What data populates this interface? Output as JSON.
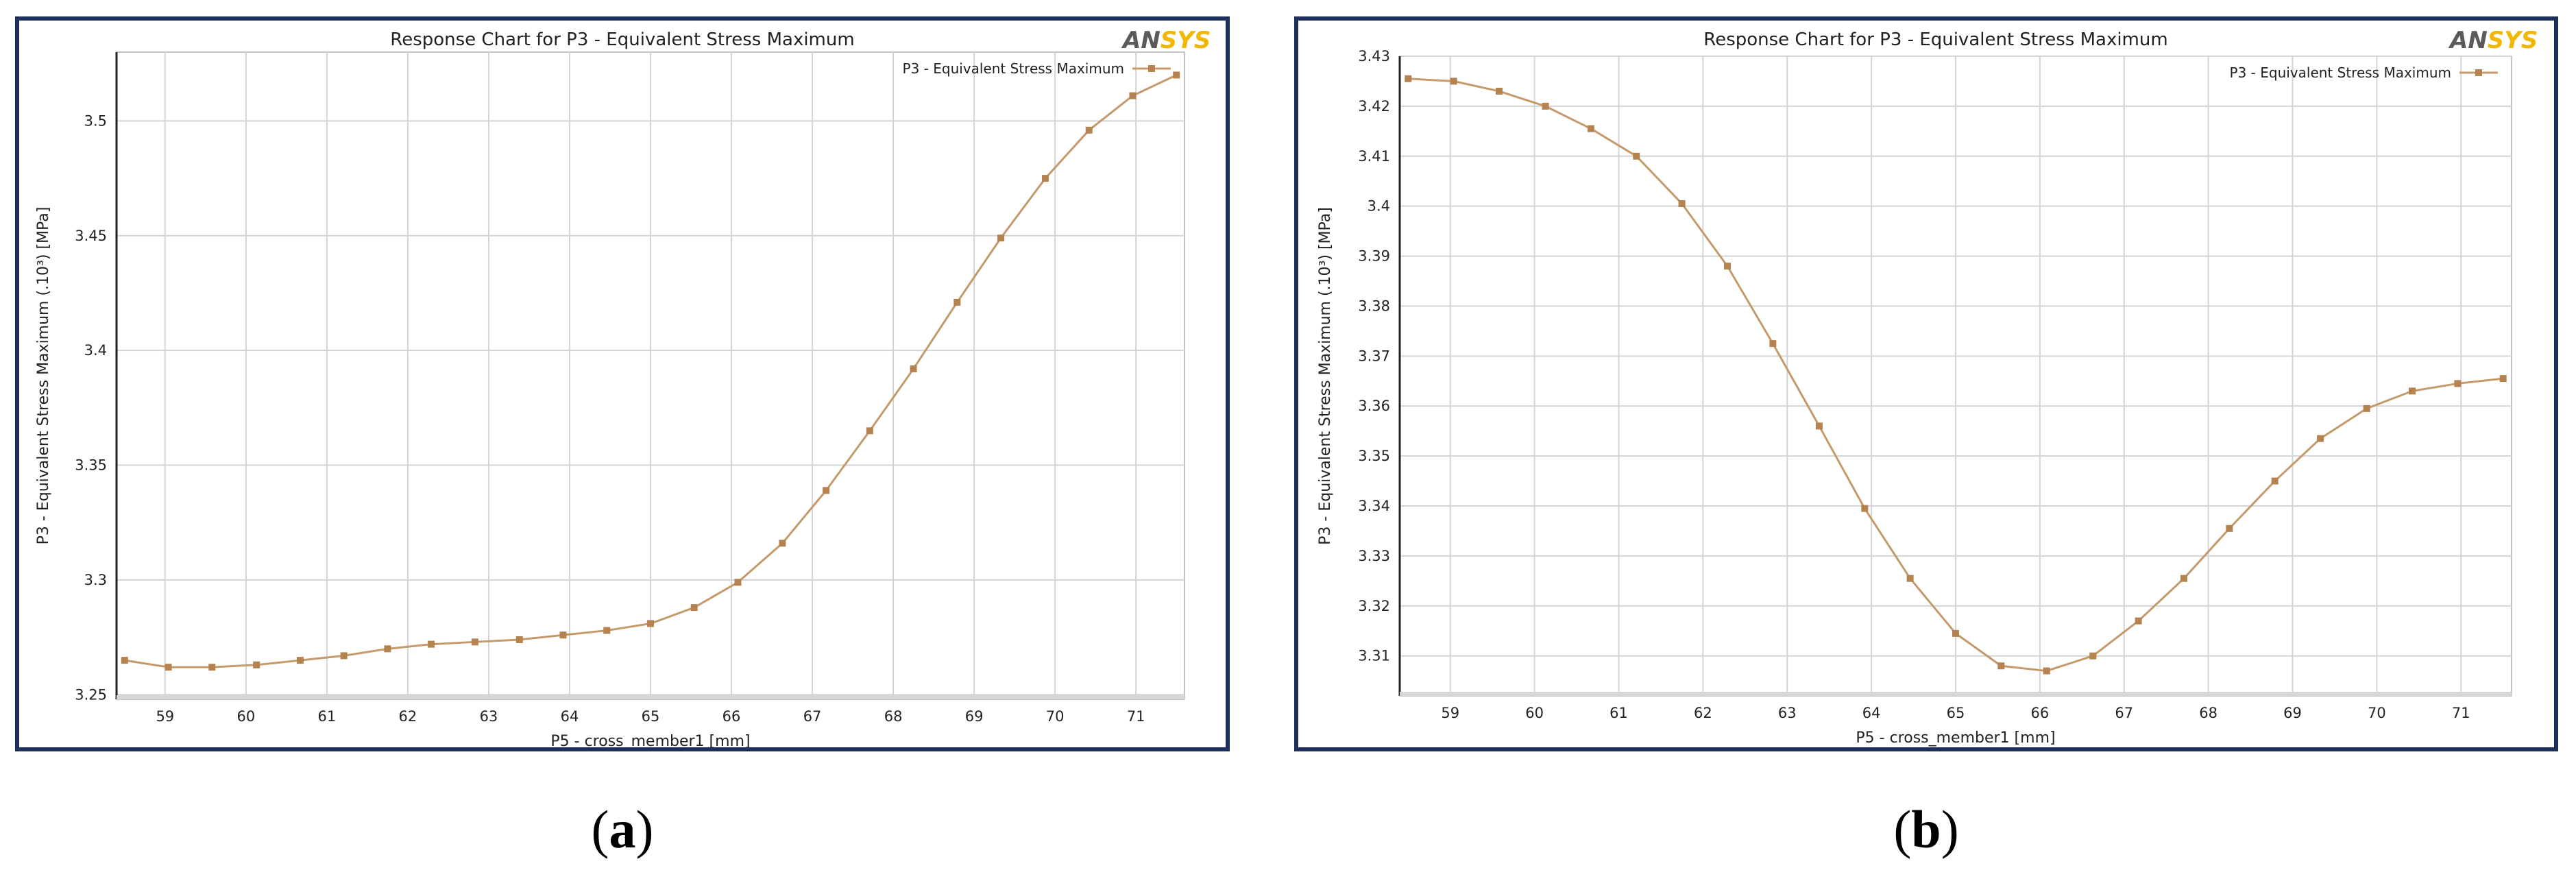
{
  "brand": {
    "logo_text_left": "AN",
    "logo_text_right": "SYS",
    "logo_color_left": "#5a5a5a",
    "logo_color_right": "#f2b705"
  },
  "colors": {
    "frame": "#1f2f5c",
    "series": "#c49a6c",
    "marker": "#b5834f",
    "grid": "#d4d4d4"
  },
  "panels": [
    {
      "sublabel_open": "(",
      "sublabel_letter": "a",
      "sublabel_close": ")"
    },
    {
      "sublabel_open": "(",
      "sublabel_letter": "b",
      "sublabel_close": ")"
    }
  ],
  "chart_data": [
    {
      "type": "line",
      "title": "Response Chart for P3 - Equivalent Stress Maximum",
      "xlabel": "P5 - cross_member1  [mm]",
      "ylabel": "P3 - Equivalent Stress Maximum  (.10³)  [MPa]",
      "legend": "top-right",
      "grid": true,
      "xlim": [
        58.4,
        71.6
      ],
      "ylim": [
        3.248,
        3.53
      ],
      "xticks": [
        "59",
        "60",
        "61",
        "62",
        "63",
        "64",
        "65",
        "66",
        "67",
        "68",
        "69",
        "70",
        "71"
      ],
      "xtick_values": [
        59,
        60,
        61,
        62,
        63,
        64,
        65,
        66,
        67,
        68,
        69,
        70,
        71
      ],
      "yticks": [
        "3.25",
        "3.3",
        "3.35",
        "3.4",
        "3.45",
        "3.5"
      ],
      "ytick_values": [
        3.25,
        3.3,
        3.35,
        3.4,
        3.45,
        3.5
      ],
      "series": [
        {
          "name": "P3 - Equivalent Stress Maximum",
          "x": [
            58.5,
            59.04,
            59.58,
            60.13,
            60.67,
            61.21,
            61.75,
            62.29,
            62.83,
            63.38,
            63.92,
            64.46,
            65.0,
            65.54,
            66.08,
            66.63,
            67.17,
            67.71,
            68.25,
            68.79,
            69.33,
            69.88,
            70.42,
            70.96,
            71.5
          ],
          "y": [
            3.265,
            3.262,
            3.262,
            3.263,
            3.265,
            3.267,
            3.27,
            3.272,
            3.273,
            3.274,
            3.276,
            3.278,
            3.281,
            3.288,
            3.299,
            3.316,
            3.339,
            3.365,
            3.392,
            3.421,
            3.449,
            3.475,
            3.496,
            3.511,
            3.52
          ]
        }
      ]
    },
    {
      "type": "line",
      "title": "Response Chart for P3 - Equivalent Stress Maximum",
      "xlabel": "P5 - cross_member1  [mm]",
      "ylabel": "P3 - Equivalent Stress Maximum  (.10³)  [MPa]",
      "legend": "top-right",
      "grid": true,
      "xlim": [
        58.4,
        71.6
      ],
      "ylim": [
        3.302,
        3.43
      ],
      "xticks": [
        "59",
        "60",
        "61",
        "62",
        "63",
        "64",
        "65",
        "66",
        "67",
        "68",
        "69",
        "70",
        "71"
      ],
      "xtick_values": [
        59,
        60,
        61,
        62,
        63,
        64,
        65,
        66,
        67,
        68,
        69,
        70,
        71
      ],
      "yticks": [
        "3.31",
        "3.32",
        "3.33",
        "3.34",
        "3.35",
        "3.36",
        "3.37",
        "3.38",
        "3.39",
        "3.4",
        "3.41",
        "3.42",
        "3.43"
      ],
      "ytick_values": [
        3.31,
        3.32,
        3.33,
        3.34,
        3.35,
        3.36,
        3.37,
        3.38,
        3.39,
        3.4,
        3.41,
        3.42,
        3.43
      ],
      "series": [
        {
          "name": "P3 - Equivalent Stress Maximum",
          "x": [
            58.5,
            59.04,
            59.58,
            60.13,
            60.67,
            61.21,
            61.75,
            62.29,
            62.83,
            63.38,
            63.92,
            64.46,
            65.0,
            65.54,
            66.08,
            66.63,
            67.17,
            67.71,
            68.25,
            68.79,
            69.33,
            69.88,
            70.42,
            70.96,
            71.5
          ],
          "y": [
            3.4255,
            3.425,
            3.423,
            3.42,
            3.4155,
            3.41,
            3.4005,
            3.388,
            3.3725,
            3.356,
            3.3395,
            3.3255,
            3.3145,
            3.308,
            3.307,
            3.31,
            3.317,
            3.3255,
            3.3355,
            3.345,
            3.3535,
            3.3595,
            3.363,
            3.3645,
            3.3655
          ]
        }
      ]
    }
  ]
}
